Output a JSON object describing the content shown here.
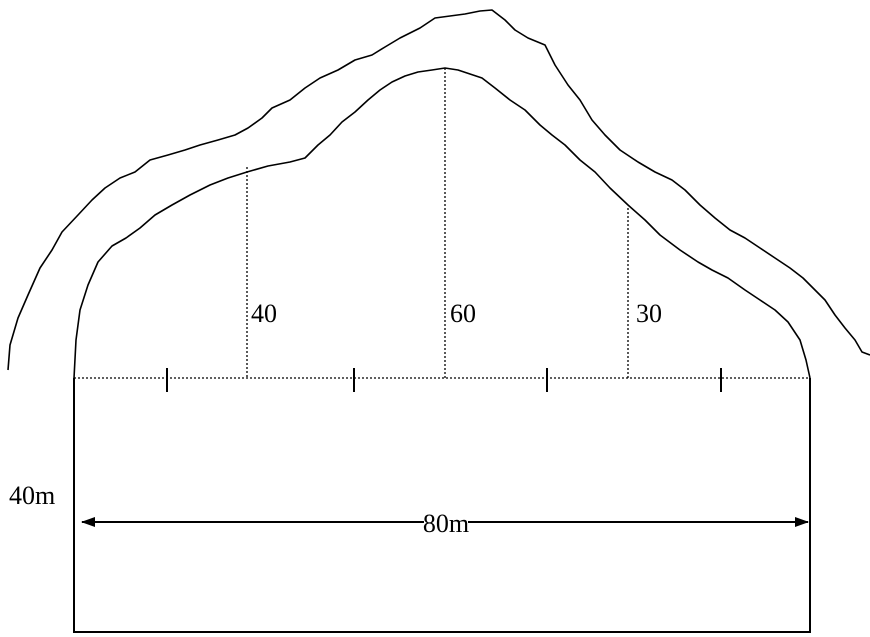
{
  "measurements": [
    {
      "label": "40"
    },
    {
      "label": "60"
    },
    {
      "label": "30"
    }
  ],
  "width_label": "40m",
  "length_label": "80m"
}
